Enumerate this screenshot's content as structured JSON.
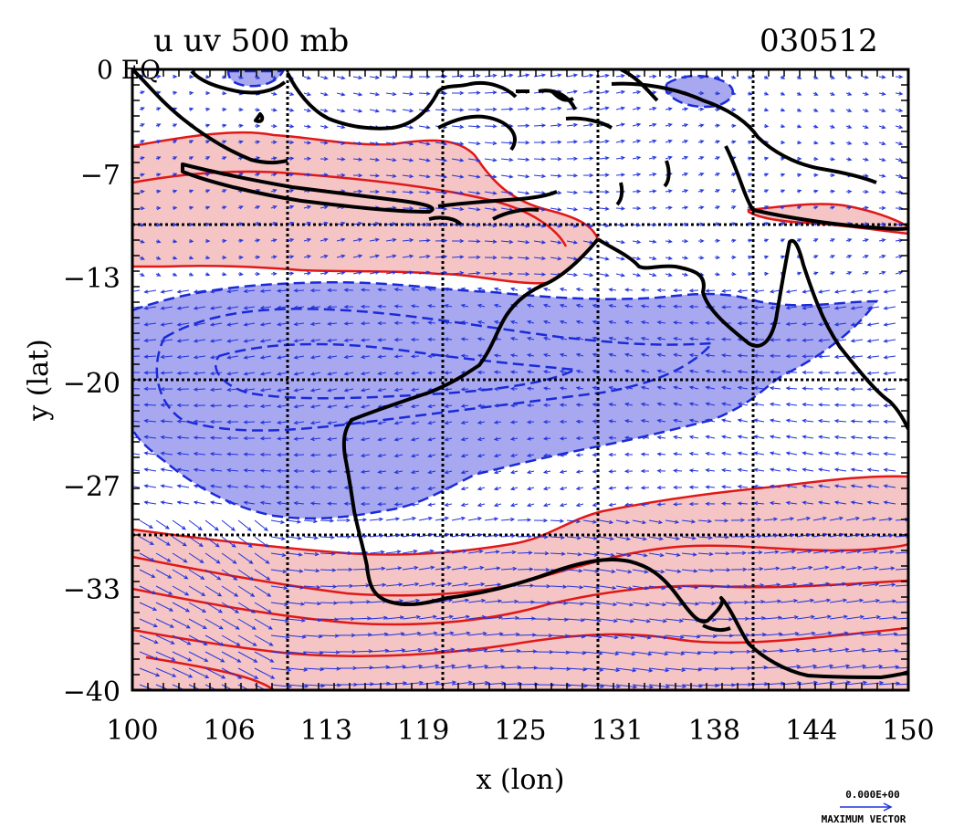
{
  "title": "u uv 500 mb",
  "date_code": "030512",
  "corner_label": "0 EQ",
  "x_axis": {
    "label": "x (lon)",
    "ticks": [
      "100",
      "106",
      "113",
      "119",
      "125",
      "131",
      "138",
      "144",
      "150"
    ],
    "range": [
      100,
      150
    ]
  },
  "y_axis": {
    "label": "y (lat)",
    "ticks": [
      "-7",
      "-13",
      "-20",
      "-27",
      "-33",
      "-40"
    ],
    "range": [
      -40,
      0
    ]
  },
  "legend": {
    "scale_value": "0.000E+00",
    "scale_label": "MAXIMUM VECTOR"
  },
  "colors": {
    "positive_fill": "#f5c4c4",
    "positive_contour": "#e01818",
    "negative_fill": "#a8a8f0",
    "negative_contour": "#1a2ad8",
    "vectors": "#2233dd",
    "coastline": "#000000",
    "grid": "#000000"
  },
  "map_data": {
    "type": "contour-vector-map",
    "variable": "u",
    "vector_field": "uv",
    "level": "500 mb",
    "region": "Maritime Continent / Australia",
    "grid_lines_lon": [
      110,
      120,
      130,
      140
    ],
    "grid_lines_lat": [
      -10,
      -20,
      -30
    ],
    "bands": [
      {
        "sign": "positive",
        "approx_lat": [
          -4,
          -14
        ],
        "description": "westerly band over Indonesia"
      },
      {
        "sign": "negative",
        "approx_lat": [
          -14,
          -29
        ],
        "description": "easterly band over north-west Australia"
      },
      {
        "sign": "positive",
        "approx_lat": [
          -29,
          -40
        ],
        "description": "westerly jet over southern Australia"
      }
    ]
  }
}
